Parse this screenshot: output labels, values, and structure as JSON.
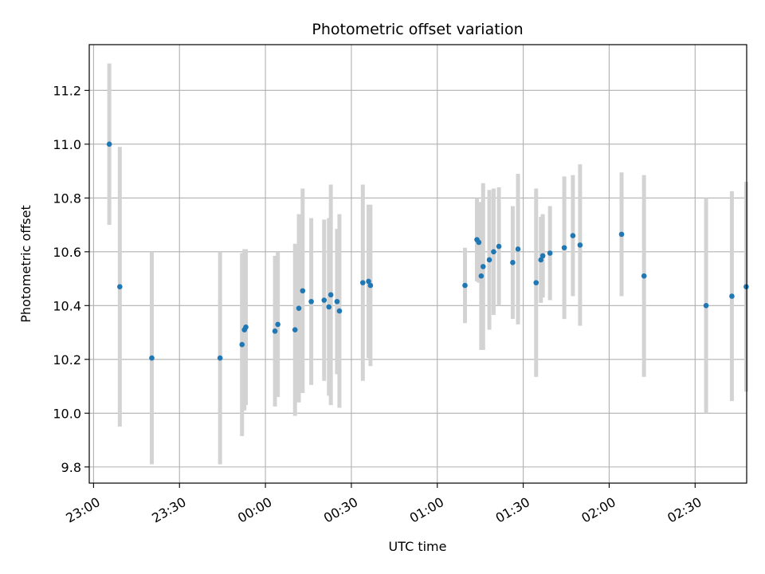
{
  "chart_data": {
    "type": "scatter",
    "title": "Photometric offset variation",
    "xlabel": "UTC time",
    "ylabel": "Photometric offset",
    "x_ticks": [
      "23:00",
      "23:30",
      "00:00",
      "00:30",
      "01:00",
      "01:30",
      "02:00",
      "02:30"
    ],
    "y_ticks": [
      "9.8",
      "10.0",
      "10.2",
      "10.4",
      "10.6",
      "10.8",
      "11.0",
      "11.2"
    ],
    "x_axis": "UTC time, 23:00 to 02:30 across midnight",
    "ylim": [
      9.74,
      11.37
    ],
    "grid": true,
    "colors": {
      "point": "#1f77b4",
      "errorbar": "#d3d3d3",
      "grid": "#b0b0b0"
    },
    "points": [
      {
        "x": "23:05:30",
        "y": 11.0,
        "yerr": 0.3
      },
      {
        "x": "23:09:10",
        "y": 10.47,
        "yerr": 0.52
      },
      {
        "x": "23:20:20",
        "y": 10.205,
        "yerr": 0.395
      },
      {
        "x": "23:44:10",
        "y": 10.205,
        "yerr": 0.395
      },
      {
        "x": "23:51:50",
        "y": 10.255,
        "yerr": 0.34
      },
      {
        "x": "23:52:40",
        "y": 10.31,
        "yerr": 0.3
      },
      {
        "x": "23:53:10",
        "y": 10.32,
        "yerr": 0.29
      },
      {
        "x": "00:03:20",
        "y": 10.305,
        "yerr": 0.28
      },
      {
        "x": "00:04:20",
        "y": 10.33,
        "yerr": 0.27
      },
      {
        "x": "00:10:20",
        "y": 10.31,
        "yerr": 0.32
      },
      {
        "x": "00:11:40",
        "y": 10.39,
        "yerr": 0.35
      },
      {
        "x": "00:13:00",
        "y": 10.455,
        "yerr": 0.38
      },
      {
        "x": "00:16:00",
        "y": 10.415,
        "yerr": 0.31
      },
      {
        "x": "00:20:30",
        "y": 10.42,
        "yerr": 0.3
      },
      {
        "x": "00:22:10",
        "y": 10.395,
        "yerr": 0.33
      },
      {
        "x": "00:22:50",
        "y": 10.44,
        "yerr": 0.41
      },
      {
        "x": "00:25:00",
        "y": 10.415,
        "yerr": 0.27
      },
      {
        "x": "00:25:50",
        "y": 10.38,
        "yerr": 0.36
      },
      {
        "x": "00:34:00",
        "y": 10.485,
        "yerr": 0.365
      },
      {
        "x": "00:36:00",
        "y": 10.49,
        "yerr": 0.285
      },
      {
        "x": "00:36:40",
        "y": 10.475,
        "yerr": 0.3
      },
      {
        "x": "01:09:40",
        "y": 10.475,
        "yerr": 0.14
      },
      {
        "x": "01:13:50",
        "y": 10.645,
        "yerr": 0.155
      },
      {
        "x": "01:14:30",
        "y": 10.635,
        "yerr": 0.15
      },
      {
        "x": "01:15:20",
        "y": 10.51,
        "yerr": 0.275
      },
      {
        "x": "01:16:00",
        "y": 10.545,
        "yerr": 0.31
      },
      {
        "x": "01:18:10",
        "y": 10.57,
        "yerr": 0.26
      },
      {
        "x": "01:19:40",
        "y": 10.6,
        "yerr": 0.235
      },
      {
        "x": "01:21:30",
        "y": 10.62,
        "yerr": 0.22
      },
      {
        "x": "01:26:20",
        "y": 10.56,
        "yerr": 0.21
      },
      {
        "x": "01:28:10",
        "y": 10.61,
        "yerr": 0.28
      },
      {
        "x": "01:34:30",
        "y": 10.485,
        "yerr": 0.35
      },
      {
        "x": "01:36:10",
        "y": 10.57,
        "yerr": 0.16
      },
      {
        "x": "01:36:50",
        "y": 10.585,
        "yerr": 0.155
      },
      {
        "x": "01:39:20",
        "y": 10.595,
        "yerr": 0.175
      },
      {
        "x": "01:44:20",
        "y": 10.615,
        "yerr": 0.265
      },
      {
        "x": "01:47:20",
        "y": 10.66,
        "yerr": 0.225
      },
      {
        "x": "01:49:50",
        "y": 10.625,
        "yerr": 0.3
      },
      {
        "x": "02:04:20",
        "y": 10.665,
        "yerr": 0.23
      },
      {
        "x": "02:12:10",
        "y": 10.51,
        "yerr": 0.375
      },
      {
        "x": "02:33:50",
        "y": 10.4,
        "yerr": 0.4
      },
      {
        "x": "02:42:50",
        "y": 10.435,
        "yerr": 0.39
      },
      {
        "x": "02:47:50",
        "y": 10.47,
        "yerr": 0.39
      }
    ]
  }
}
